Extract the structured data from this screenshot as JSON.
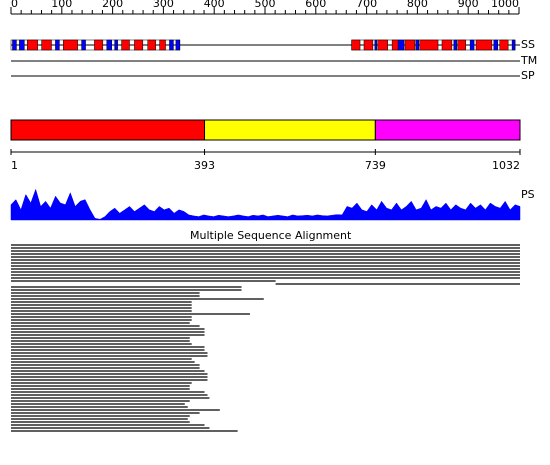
{
  "ruler": {
    "xlim": [
      0,
      1000
    ],
    "ticks": [
      0,
      100,
      200,
      300,
      400,
      500,
      600,
      700,
      800,
      900,
      1000
    ]
  },
  "sequence": {
    "range": [
      1,
      1032
    ]
  },
  "tracks": {
    "ss": {
      "label": "SS",
      "helix_color": "#ff0000",
      "strand_color": "#0000ff",
      "helices": [
        [
          34,
          55
        ],
        [
          63,
          83
        ],
        [
          107,
          136
        ],
        [
          170,
          187
        ],
        [
          225,
          241
        ],
        [
          251,
          268
        ],
        [
          278,
          294
        ],
        [
          302,
          314
        ],
        [
          691,
          708
        ],
        [
          716,
          734
        ],
        [
          744,
          764
        ],
        [
          773,
          785
        ],
        [
          799,
          819
        ],
        [
          829,
          866
        ],
        [
          874,
          894
        ],
        [
          906,
          922
        ],
        [
          943,
          975
        ],
        [
          991,
          1008
        ]
      ],
      "strands": [
        [
          4,
          12
        ],
        [
          18,
          28
        ],
        [
          91,
          99
        ],
        [
          144,
          152
        ],
        [
          195,
          205
        ],
        [
          211,
          217
        ],
        [
          322,
          330
        ],
        [
          335,
          343
        ],
        [
          738,
          742
        ],
        [
          785,
          797
        ],
        [
          821,
          827
        ],
        [
          898,
          904
        ],
        [
          931,
          939
        ],
        [
          979,
          987
        ],
        [
          1016,
          1022
        ]
      ],
      "regions": [
        [
          1,
          343
        ],
        [
          691,
          1022
        ]
      ]
    },
    "tm": {
      "label": "TM"
    },
    "sp": {
      "label": "SP"
    }
  },
  "domains": {
    "boundaries": [
      1,
      393,
      739,
      1032
    ],
    "colors": [
      "#ff0000",
      "#ffff00",
      "#ff00ff"
    ]
  },
  "ps": {
    "label": "PS",
    "color": "#0000ff",
    "ylim": [
      0,
      1
    ],
    "values": [
      0.45,
      0.6,
      0.3,
      0.75,
      0.5,
      0.9,
      0.4,
      0.55,
      0.35,
      0.7,
      0.5,
      0.45,
      0.8,
      0.4,
      0.55,
      0.6,
      0.3,
      0.05,
      0.02,
      0.1,
      0.25,
      0.35,
      0.2,
      0.3,
      0.4,
      0.25,
      0.35,
      0.45,
      0.3,
      0.25,
      0.4,
      0.3,
      0.35,
      0.2,
      0.3,
      0.25,
      0.15,
      0.12,
      0.1,
      0.15,
      0.12,
      0.1,
      0.14,
      0.12,
      0.1,
      0.12,
      0.15,
      0.12,
      0.1,
      0.14,
      0.12,
      0.15,
      0.1,
      0.12,
      0.14,
      0.12,
      0.1,
      0.15,
      0.12,
      0.13,
      0.14,
      0.12,
      0.15,
      0.13,
      0.12,
      0.14,
      0.16,
      0.15,
      0.4,
      0.35,
      0.5,
      0.3,
      0.25,
      0.45,
      0.3,
      0.55,
      0.35,
      0.3,
      0.5,
      0.3,
      0.4,
      0.55,
      0.3,
      0.35,
      0.6,
      0.3,
      0.4,
      0.35,
      0.5,
      0.3,
      0.45,
      0.35,
      0.3,
      0.5,
      0.35,
      0.45,
      0.3,
      0.5,
      0.4,
      0.35,
      0.55,
      0.3,
      0.45,
      0.4
    ]
  },
  "msa": {
    "title": "Multiple Sequence Alignment",
    "rows": [
      [
        1,
        1032
      ],
      [
        1,
        1032
      ],
      [
        1,
        1032
      ],
      [
        1,
        1032
      ],
      [
        1,
        1032
      ],
      [
        1,
        1032
      ],
      [
        1,
        1032
      ],
      [
        1,
        1032
      ],
      [
        1,
        1032
      ],
      [
        1,
        1032
      ],
      [
        1,
        1032
      ],
      [
        1,
        1032
      ],
      [
        1,
        537
      ],
      [
        537,
        1032
      ],
      [
        1,
        468
      ],
      [
        1,
        468
      ],
      [
        1,
        383
      ],
      [
        1,
        383
      ],
      [
        1,
        513
      ],
      [
        1,
        367
      ],
      [
        1,
        367
      ],
      [
        1,
        367
      ],
      [
        1,
        367
      ],
      [
        1,
        485
      ],
      [
        1,
        367
      ],
      [
        1,
        367
      ],
      [
        1,
        363
      ],
      [
        1,
        383
      ],
      [
        1,
        393
      ],
      [
        1,
        393
      ],
      [
        1,
        393
      ],
      [
        1,
        363
      ],
      [
        1,
        363
      ],
      [
        1,
        367
      ],
      [
        1,
        393
      ],
      [
        1,
        393
      ],
      [
        1,
        399
      ],
      [
        1,
        399
      ],
      [
        1,
        367
      ],
      [
        1,
        373
      ],
      [
        1,
        383
      ],
      [
        1,
        383
      ],
      [
        1,
        393
      ],
      [
        1,
        399
      ],
      [
        1,
        399
      ],
      [
        1,
        399
      ],
      [
        1,
        367
      ],
      [
        1,
        363
      ],
      [
        1,
        363
      ],
      [
        1,
        393
      ],
      [
        1,
        399
      ],
      [
        1,
        403
      ],
      [
        1,
        363
      ],
      [
        1,
        353
      ],
      [
        1,
        359
      ],
      [
        1,
        424
      ],
      [
        1,
        383
      ],
      [
        1,
        363
      ],
      [
        1,
        359
      ],
      [
        1,
        363
      ],
      [
        1,
        393
      ],
      [
        1,
        403
      ],
      [
        1,
        460
      ]
    ]
  }
}
